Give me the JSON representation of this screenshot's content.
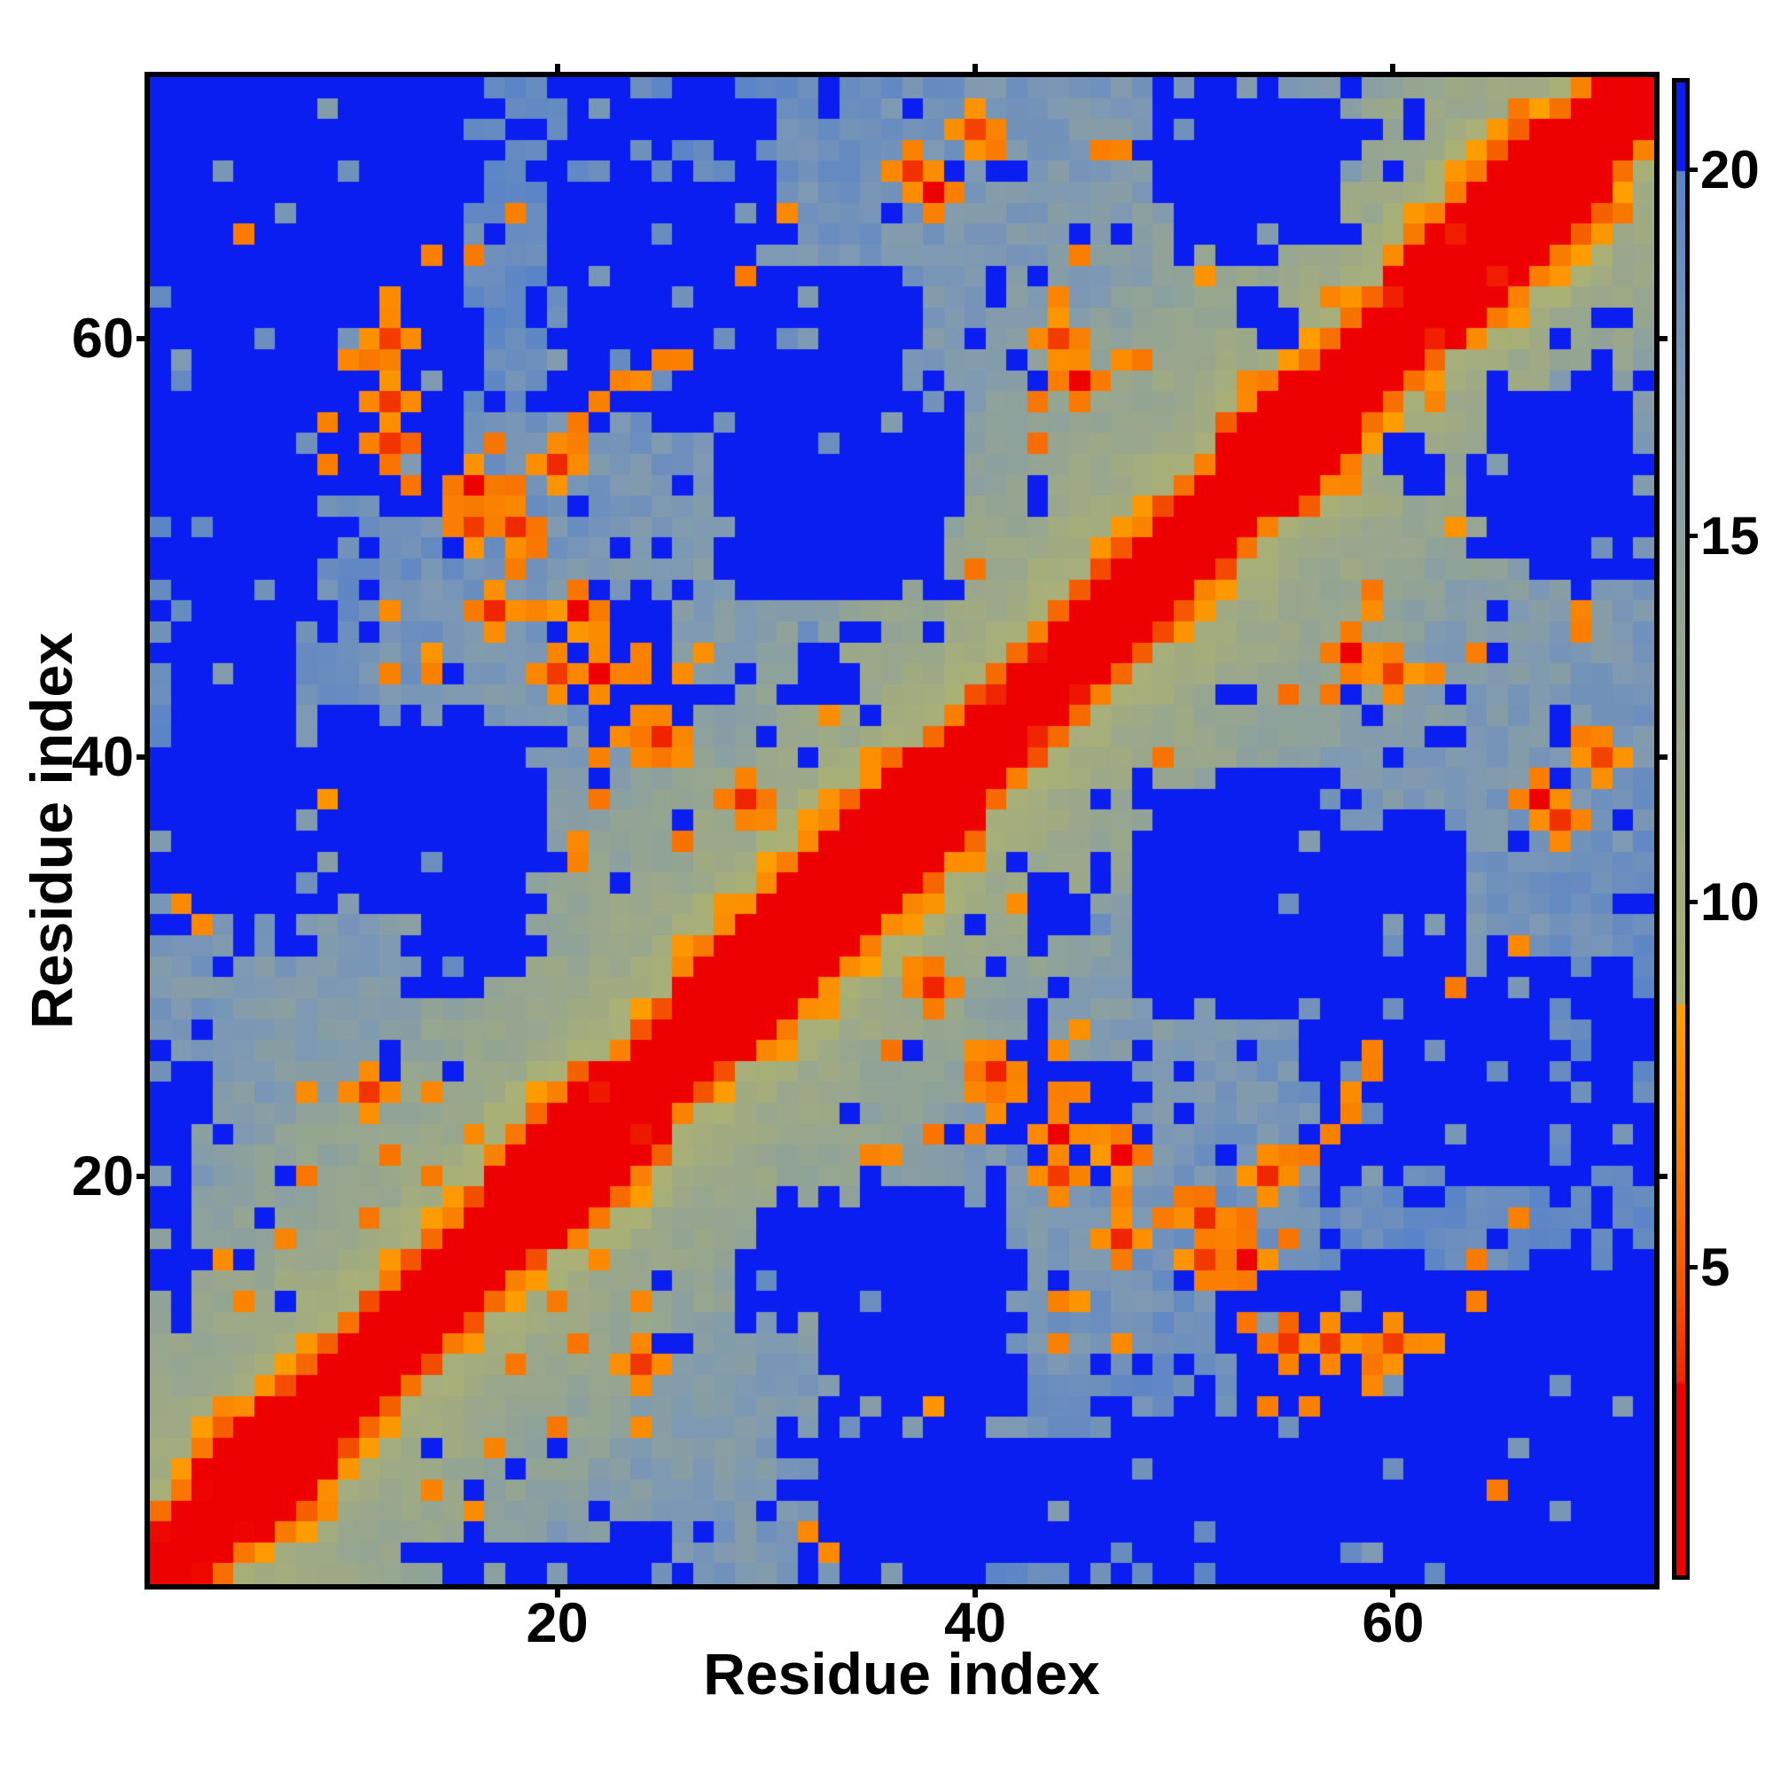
{
  "figure": {
    "background": "#ffffff",
    "frame_color": "#000000",
    "title": ""
  },
  "axes": {
    "xlabel": "Residue index",
    "ylabel": "Residue index",
    "x_tick_labels": [
      "20",
      "40",
      "60"
    ],
    "y_tick_labels": [
      "20",
      "40",
      "60"
    ]
  },
  "colorbar": {
    "tick_labels": [
      "5",
      "10",
      "15",
      "20"
    ],
    "orientation": "vertical",
    "position": "right"
  },
  "chart_data": {
    "type": "heatmap",
    "title": "",
    "xlabel": "Residue index",
    "ylabel": "Residue index",
    "n": 72,
    "x_range": [
      1,
      72
    ],
    "y_range": [
      1,
      72
    ],
    "x_ticks": [
      20,
      40,
      60
    ],
    "y_ticks": [
      20,
      40,
      60
    ],
    "colorbar_ticks": [
      5,
      10,
      15,
      20
    ],
    "value_range": [
      0.8,
      21.2
    ],
    "grid": false,
    "legend": "colorbar-right",
    "description": "Symmetric residue-residue distance matrix, 72 residues. Red diagonal band (short distances), orange flanks and contact spots, khaki-to-slate gradient with growing sequence separation, saturated blue for distances beyond ~20.",
    "colormap": [
      [
        21.45,
        "#0b1ef2"
      ],
      [
        20.0,
        "#0b1ef2"
      ],
      [
        19.995,
        "#5a84c8"
      ],
      [
        17.0,
        "#7e99b3"
      ],
      [
        14.0,
        "#93a494"
      ],
      [
        11.0,
        "#a1ab81"
      ],
      [
        8.605,
        "#abb174"
      ],
      [
        8.6,
        "#ffa000"
      ],
      [
        7.0,
        "#fb8900"
      ],
      [
        5.8,
        "#f87000"
      ],
      [
        4.6,
        "#f45100"
      ],
      [
        3.45,
        "#f02600"
      ],
      [
        3.4,
        "#ee0000"
      ],
      [
        0.0,
        "#ee0000"
      ]
    ],
    "generator": {
      "seed": 7,
      "base_by_separation": [
        0.7,
        1.4,
        3.1,
        5.6,
        8.8,
        10.1,
        11.1,
        11.9
      ],
      "near_slope": 0.42,
      "far_start": 16.1,
      "far_slope": 0.11,
      "cap": 21.2,
      "blue_value": 21.4,
      "noise_amp": 2.4,
      "blue_speckle": 0.065,
      "blue_speckle_near": 0.03,
      "orange_speckle": 0.015,
      "slate_speckle": 0.06,
      "helix_segments": [
        [
          3,
          9,
          3.4
        ],
        [
          17,
          25,
          3.4
        ],
        [
          26,
          40,
          3.2
        ],
        [
          52,
          58,
          3.4
        ],
        [
          60,
          70,
          3.6
        ]
      ],
      "far_regions": [
        [
          1,
          16,
          52,
          72
        ],
        [
          1,
          8,
          31,
          52
        ],
        [
          9,
          19,
          33,
          42
        ],
        [
          20,
          26,
          41,
          48
        ],
        [
          28,
          39,
          48,
          58
        ],
        [
          13,
          19,
          29,
          38
        ],
        [
          49,
          58,
          64,
          72
        ],
        [
          20,
          31,
          56,
          68
        ],
        [
          1,
          3,
          14,
          26
        ],
        [
          31,
          34,
          43,
          46
        ],
        [
          53,
          55,
          60,
          62
        ],
        [
          32,
          37,
          57,
          63
        ],
        [
          21,
          30,
          69,
          72
        ],
        [
          1,
          9,
          46,
          53
        ]
      ],
      "contacts": [
        [
          2,
          33,
          6
        ],
        [
          3,
          32,
          6
        ],
        [
          5,
          14,
          6
        ],
        [
          7,
          17,
          6
        ],
        [
          8,
          20,
          6
        ],
        [
          8,
          24,
          6
        ],
        [
          9,
          54,
          6
        ],
        [
          9,
          56,
          6
        ],
        [
          10,
          59,
          6
        ],
        [
          11,
          18,
          6
        ],
        [
          11,
          24,
          3
        ],
        [
          11,
          59,
          6
        ],
        [
          12,
          21,
          6
        ],
        [
          12,
          44,
          6
        ],
        [
          12,
          47,
          6
        ],
        [
          12,
          55,
          3
        ],
        [
          12,
          57,
          3
        ],
        [
          12,
          60,
          3
        ],
        [
          12,
          62,
          6
        ],
        [
          13,
          53,
          6
        ],
        [
          13,
          55,
          4
        ],
        [
          13,
          57,
          6
        ],
        [
          14,
          20,
          6
        ],
        [
          14,
          24,
          6
        ],
        [
          14,
          64,
          6
        ],
        [
          15,
          51,
          6
        ],
        [
          15,
          52,
          6
        ],
        [
          16,
          22,
          6
        ],
        [
          16,
          51,
          3
        ],
        [
          16,
          53,
          3
        ],
        [
          16,
          64,
          6
        ],
        [
          17,
          47,
          3
        ],
        [
          17,
          52,
          6
        ],
        [
          17,
          53,
          6
        ],
        [
          17,
          55,
          6
        ],
        [
          18,
          49,
          6
        ],
        [
          18,
          51,
          3
        ],
        [
          18,
          53,
          6
        ],
        [
          18,
          66,
          6
        ],
        [
          19,
          47,
          6
        ],
        [
          19,
          50,
          6
        ],
        [
          20,
          44,
          3
        ],
        [
          20,
          54,
          3
        ],
        [
          21,
          35,
          6
        ],
        [
          21,
          36,
          6
        ],
        [
          21,
          44,
          6
        ],
        [
          21,
          47,
          3
        ],
        [
          21,
          48,
          6
        ],
        [
          21,
          55,
          6
        ],
        [
          21,
          56,
          6
        ],
        [
          22,
          38,
          6
        ],
        [
          22,
          40,
          6
        ],
        [
          22,
          44,
          3
        ],
        [
          22,
          46,
          6
        ],
        [
          22,
          57,
          6
        ],
        [
          23,
          41,
          6
        ],
        [
          23,
          58,
          6
        ],
        [
          24,
          40,
          6
        ],
        [
          24,
          42,
          6
        ],
        [
          24,
          44,
          6
        ],
        [
          24,
          45,
          6
        ],
        [
          24,
          58,
          6
        ],
        [
          25,
          40,
          6
        ],
        [
          25,
          41,
          3
        ],
        [
          25,
          59,
          6
        ],
        [
          26,
          40,
          6
        ],
        [
          26,
          41,
          6
        ],
        [
          26,
          44,
          6
        ],
        [
          26,
          59,
          6
        ],
        [
          28,
          38,
          6
        ],
        [
          29,
          38,
          3
        ],
        [
          29,
          39,
          6
        ],
        [
          29,
          63,
          6
        ],
        [
          30,
          37,
          6
        ],
        [
          31,
          66,
          6
        ],
        [
          37,
          68,
          3
        ],
        [
          37,
          69,
          6
        ],
        [
          38,
          67,
          3
        ],
        [
          38,
          68,
          6
        ],
        [
          40,
          70,
          3
        ],
        [
          41,
          69,
          6
        ],
        [
          43,
          57,
          6
        ],
        [
          44,
          58,
          6
        ],
        [
          44,
          60,
          3
        ],
        [
          44,
          62,
          6
        ],
        [
          45,
          58,
          3
        ],
        [
          45,
          64,
          6
        ],
        [
          46,
          58,
          6
        ],
        [
          47,
          59,
          6
        ],
        [
          48,
          59,
          6
        ],
        [
          53,
          58,
          6
        ],
        [
          57,
          62,
          6
        ],
        [
          66,
          70,
          6
        ],
        [
          66,
          71,
          6
        ]
      ]
    }
  }
}
